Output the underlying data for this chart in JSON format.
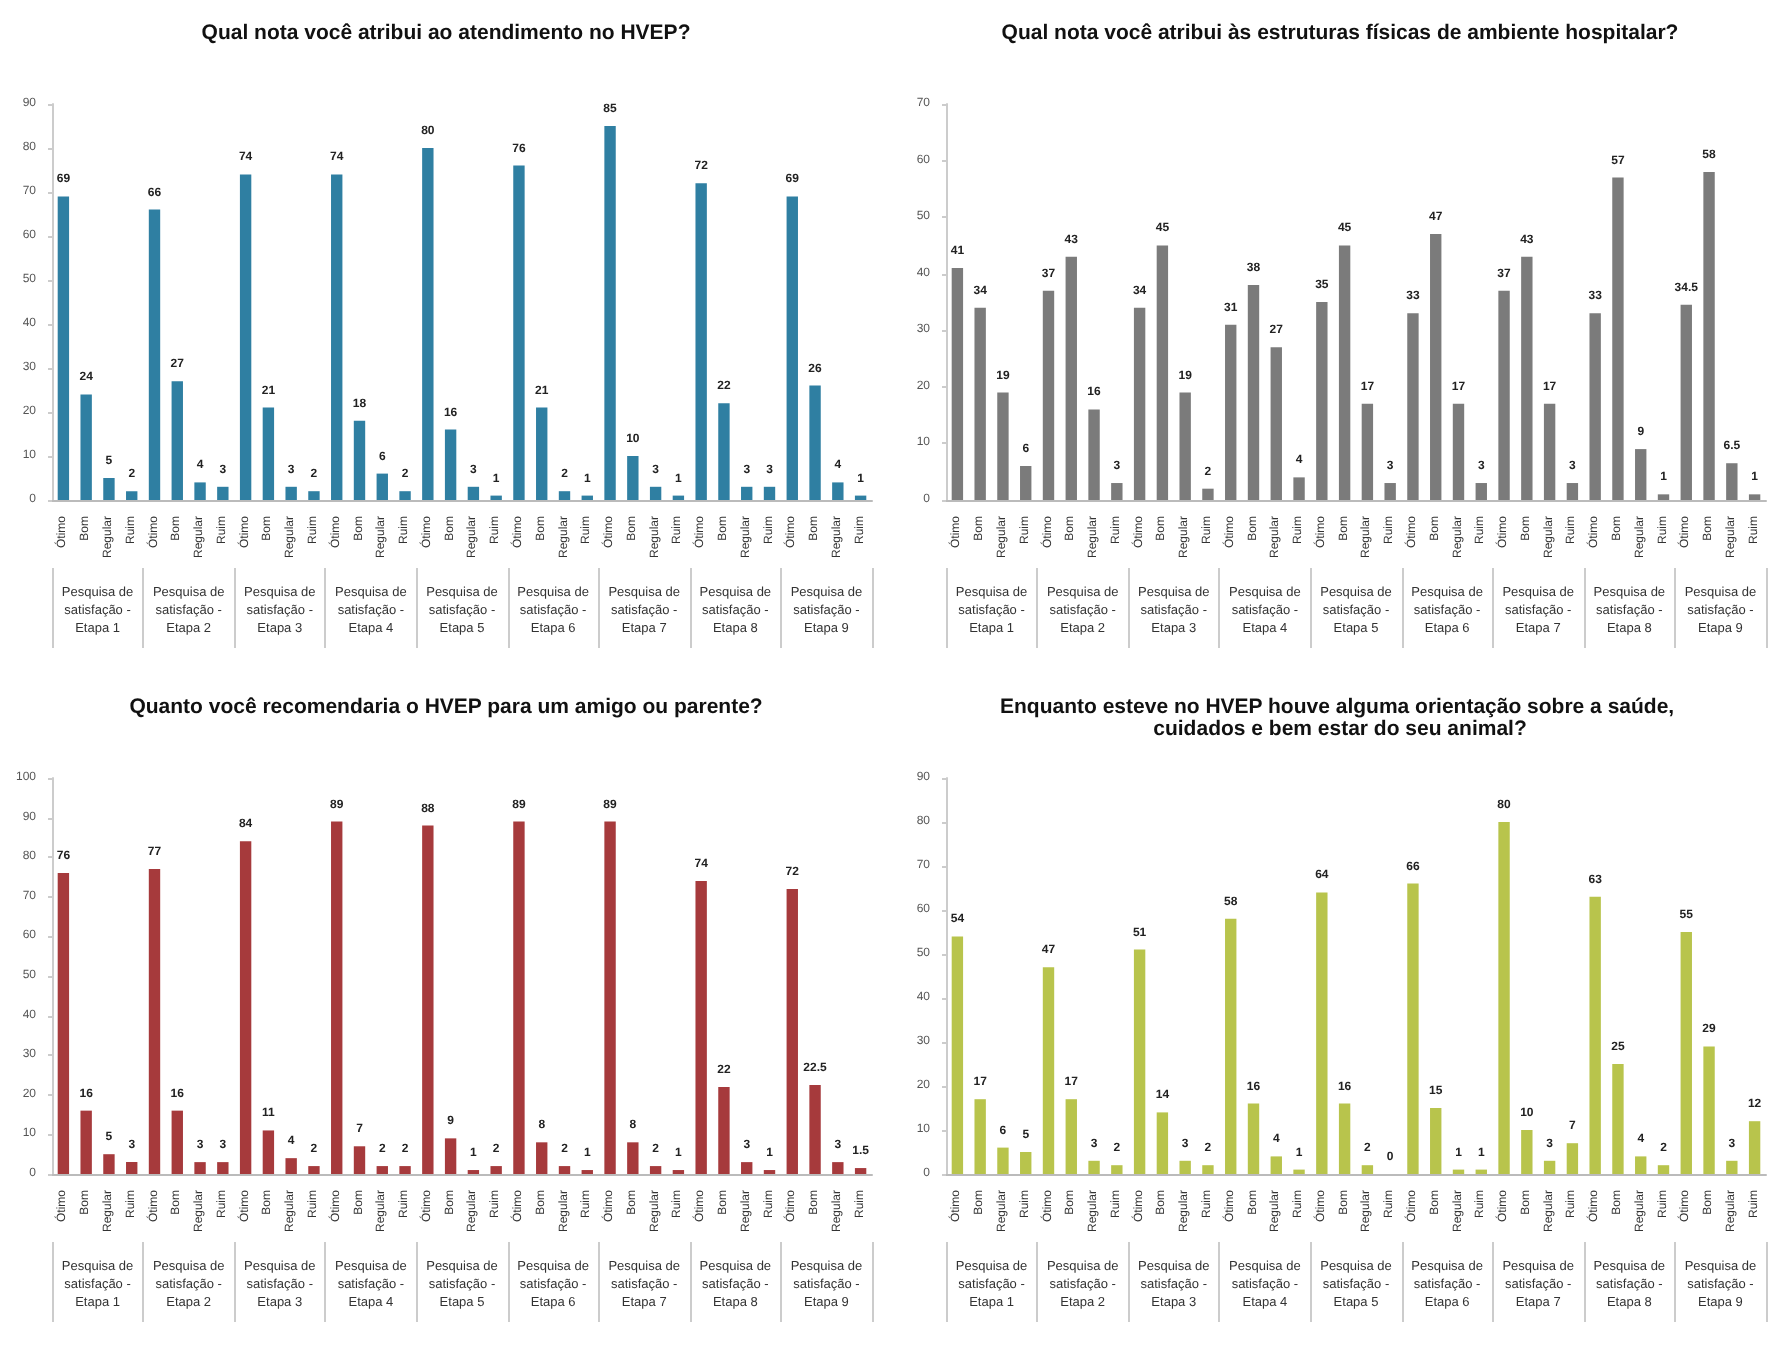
{
  "chart_data": [
    {
      "type": "bar",
      "title": "Qual nota você atribui ao atendimento no HVEP?",
      "categories": [
        "Ótimo",
        "Bom",
        "Regular",
        "Ruim",
        "Ótimo",
        "Bom",
        "Regular",
        "Ruim",
        "Ótimo",
        "Bom",
        "Regular",
        "Ruim",
        "Ótimo",
        "Bom",
        "Regular",
        "Ruim",
        "Ótimo",
        "Bom",
        "Regular",
        "Ruim",
        "Ótimo",
        "Bom",
        "Regular",
        "Ruim",
        "Ótimo",
        "Bom",
        "Regular",
        "Ruim",
        "Ótimo",
        "Bom",
        "Regular",
        "Ruim",
        "Ótimo",
        "Bom",
        "Regular",
        "Ruim"
      ],
      "values": [
        69,
        24,
        5,
        2,
        66,
        27,
        4,
        3,
        74,
        21,
        3,
        2,
        74,
        18,
        6,
        2,
        80,
        16,
        3,
        1,
        76,
        21,
        2,
        1,
        85,
        10,
        3,
        1,
        72,
        22,
        3,
        3,
        69,
        26,
        4,
        1
      ],
      "color": "#2f7fa2",
      "ylim": [
        0,
        90
      ],
      "yticks": [
        0,
        10,
        20,
        30,
        40,
        50,
        60,
        70,
        80,
        90
      ],
      "data_labels": true,
      "grid": false,
      "annotations": [
        "Pesquisa de satisfação - Etapa 1",
        "Pesquisa de satisfação - Etapa 2",
        "Pesquisa de satisfação - Etapa 3",
        "Pesquisa de satisfação - Etapa 4",
        "Pesquisa de satisfação - Etapa 5",
        "Pesquisa de satisfação - Etapa 6",
        "Pesquisa de satisfação - Etapa 7",
        "Pesquisa de satisfação - Etapa 8",
        "Pesquisa de satisfação - Etapa 9"
      ]
    },
    {
      "type": "bar",
      "title": "Qual nota você atribui às estruturas físicas de ambiente hospitalar?",
      "categories": [
        "Ótimo",
        "Bom",
        "Regular",
        "Ruim",
        "Ótimo",
        "Bom",
        "Regular",
        "Ruim",
        "Ótimo",
        "Bom",
        "Regular",
        "Ruim",
        "Ótimo",
        "Bom",
        "Regular",
        "Ruim",
        "Ótimo",
        "Bom",
        "Regular",
        "Ruim",
        "Ótimo",
        "Bom",
        "Regular",
        "Ruim",
        "Ótimo",
        "Bom",
        "Regular",
        "Ruim",
        "Ótimo",
        "Bom",
        "Regular",
        "Ruim",
        "Ótimo",
        "Bom",
        "Regular",
        "Ruim"
      ],
      "values": [
        41,
        34,
        19,
        6,
        37,
        43,
        16,
        3,
        34,
        45,
        19,
        2,
        31,
        38,
        27,
        4,
        35,
        45,
        17,
        3,
        33,
        47,
        17,
        3,
        37,
        43,
        17,
        3,
        33,
        57,
        9,
        1,
        34.5,
        58,
        6.5,
        1
      ],
      "color": "#7b7b7b",
      "ylim": [
        0,
        70
      ],
      "yticks": [
        0,
        10,
        20,
        30,
        40,
        50,
        60,
        70
      ],
      "data_labels": true,
      "grid": false,
      "annotations": [
        "Pesquisa de satisfação - Etapa 1",
        "Pesquisa de satisfação - Etapa 2",
        "Pesquisa de satisfação - Etapa 3",
        "Pesquisa de satisfação - Etapa 4",
        "Pesquisa de satisfação - Etapa 5",
        "Pesquisa de satisfação - Etapa 6",
        "Pesquisa de satisfação - Etapa 7",
        "Pesquisa de satisfação - Etapa 8",
        "Pesquisa de satisfação - Etapa 9"
      ]
    },
    {
      "type": "bar",
      "title": "Quanto você recomendaria o HVEP para um amigo ou parente?",
      "categories": [
        "Ótimo",
        "Bom",
        "Regular",
        "Ruim",
        "Ótimo",
        "Bom",
        "Regular",
        "Ruim",
        "Ótimo",
        "Bom",
        "Regular",
        "Ruim",
        "Ótimo",
        "Bom",
        "Regular",
        "Ruim",
        "Ótimo",
        "Bom",
        "Regular",
        "Ruim",
        "Ótimo",
        "Bom",
        "Regular",
        "Ruim",
        "Ótimo",
        "Bom",
        "Regular",
        "Ruim",
        "Ótimo",
        "Bom",
        "Regular",
        "Ruim",
        "Ótimo",
        "Bom",
        "Regular",
        "Ruim"
      ],
      "values": [
        76,
        16,
        5,
        3,
        77,
        16,
        3,
        3,
        84,
        11,
        4,
        2,
        89,
        7,
        2,
        2,
        88,
        9,
        1,
        2,
        89,
        8,
        2,
        1,
        89,
        8,
        2,
        1,
        74,
        22,
        3,
        1,
        72,
        22.5,
        3,
        1.5
      ],
      "color": "#a63a3c",
      "ylim": [
        0,
        100
      ],
      "yticks": [
        0,
        10,
        20,
        30,
        40,
        50,
        60,
        70,
        80,
        90,
        100
      ],
      "data_labels": true,
      "grid": false,
      "annotations": [
        "Pesquisa de satisfação - Etapa 1",
        "Pesquisa de satisfação - Etapa 2",
        "Pesquisa de satisfação - Etapa 3",
        "Pesquisa de satisfação - Etapa 4",
        "Pesquisa de satisfação - Etapa 5",
        "Pesquisa de satisfação - Etapa 6",
        "Pesquisa de satisfação - Etapa 7",
        "Pesquisa de satisfação - Etapa 8",
        "Pesquisa de satisfação - Etapa 9"
      ]
    },
    {
      "type": "bar",
      "title": "Enquanto esteve no HVEP houve alguma orientação sobre a saúde, cuidados e bem estar do seu animal?",
      "categories": [
        "Ótimo",
        "Bom",
        "Regular",
        "Ruim",
        "Ótimo",
        "Bom",
        "Regular",
        "Ruim",
        "Ótimo",
        "Bom",
        "Regular",
        "Ruim",
        "Ótimo",
        "Bom",
        "Regular",
        "Ruim",
        "Ótimo",
        "Bom",
        "Regular",
        "Ruim",
        "Ótimo",
        "Bom",
        "Regular",
        "Ruim",
        "Ótimo",
        "Bom",
        "Regular",
        "Ruim",
        "Ótimo",
        "Bom",
        "Regular",
        "Ruim",
        "Ótimo",
        "Bom",
        "Regular",
        "Ruim"
      ],
      "values": [
        54,
        17,
        6,
        5,
        47,
        17,
        3,
        2,
        51,
        14,
        3,
        2,
        58,
        16,
        4,
        1,
        64,
        16,
        2,
        0,
        66,
        15,
        1,
        1,
        80,
        10,
        3,
        7,
        63,
        25,
        4,
        2,
        55,
        29,
        3,
        12
      ],
      "color": "#b8c44c",
      "ylim": [
        0,
        90
      ],
      "yticks": [
        0,
        10,
        20,
        30,
        40,
        50,
        60,
        70,
        80,
        90
      ],
      "data_labels": true,
      "grid": false,
      "annotations": [
        "Pesquisa de satisfação - Etapa 1",
        "Pesquisa de satisfação - Etapa 2",
        "Pesquisa de satisfação - Etapa 3",
        "Pesquisa de satisfação - Etapa 4",
        "Pesquisa de satisfação - Etapa 5",
        "Pesquisa de satisfação - Etapa 6",
        "Pesquisa de satisfação - Etapa 7",
        "Pesquisa de satisfação - Etapa 8",
        "Pesquisa de satisfação - Etapa 9"
      ]
    }
  ]
}
